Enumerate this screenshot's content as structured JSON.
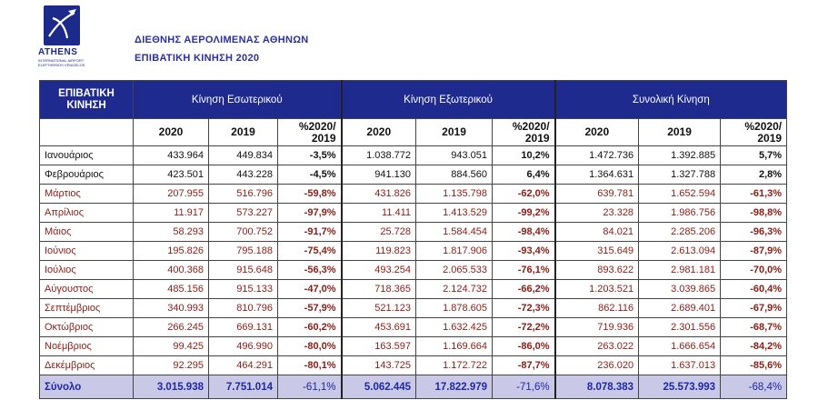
{
  "logo": {
    "name": "ATHENS",
    "sub1": "INTERNATIONAL AIRPORT",
    "sub2": "ELEFTHERIOS VENIZELOS"
  },
  "titles": {
    "line1": "ΔΙΕΘΝΗΣ ΑΕΡΟΛΙΜΕΝΑΣ ΑΘΗΝΩΝ",
    "line2": "ΕΠΙΒΑΤΙΚΗ ΚΙΝΗΣΗ 2020"
  },
  "table": {
    "corner": [
      "ΕΠΙΒΑΤΙΚΗ",
      "ΚΙΝΗΣΗ"
    ],
    "groups": [
      "Κίνηση Εσωτερικού",
      "Κίνηση Εξωτερικού",
      "Συνολική Κίνηση"
    ],
    "sub": {
      "y2020": "2020",
      "y2019": "2019",
      "pct1": "%2020/",
      "pct2": "2019"
    },
    "rows": [
      {
        "m": "Ιανουάριος",
        "c": [
          "433.964",
          "449.834",
          "-3,5%",
          "1.038.772",
          "943.051",
          "10,2%",
          "1.472.736",
          "1.392.885",
          "5,7%"
        ]
      },
      {
        "m": "Φεβρουάριος",
        "c": [
          "423.501",
          "443.228",
          "-4,5%",
          "941.130",
          "884.560",
          "6,4%",
          "1.364.631",
          "1.327.788",
          "2,8%"
        ]
      },
      {
        "m": "Μάρτιος",
        "c": [
          "207.955",
          "516.796",
          "-59,8%",
          "431.826",
          "1.135.798",
          "-62,0%",
          "639.781",
          "1.652.594",
          "-61,3%"
        ]
      },
      {
        "m": "Απρίλιος",
        "c": [
          "11.917",
          "573.227",
          "-97,9%",
          "11.411",
          "1.413.529",
          "-99,2%",
          "23.328",
          "1.986.756",
          "-98,8%"
        ]
      },
      {
        "m": "Μάιος",
        "c": [
          "58.293",
          "700.752",
          "-91,7%",
          "25.728",
          "1.584.454",
          "-98,4%",
          "84.021",
          "2.285.206",
          "-96,3%"
        ]
      },
      {
        "m": "Ιούνιος",
        "c": [
          "195.826",
          "795.188",
          "-75,4%",
          "119.823",
          "1.817.906",
          "-93,4%",
          "315.649",
          "2.613.094",
          "-87,9%"
        ]
      },
      {
        "m": "Ιούλιος",
        "c": [
          "400.368",
          "915.648",
          "-56,3%",
          "493.254",
          "2.065.533",
          "-76,1%",
          "893.622",
          "2.981.181",
          "-70,0%"
        ]
      },
      {
        "m": "Αύγουστος",
        "c": [
          "485.156",
          "915.133",
          "-47,0%",
          "718.365",
          "2.124.732",
          "-66,2%",
          "1.203.521",
          "3.039.865",
          "-60,4%"
        ]
      },
      {
        "m": "Σεπτέμβριος",
        "c": [
          "340.993",
          "810.796",
          "-57,9%",
          "521.123",
          "1.878.605",
          "-72,3%",
          "862.116",
          "2.689.401",
          "-67,9%"
        ]
      },
      {
        "m": "Οκτώβριος",
        "c": [
          "266.245",
          "669.131",
          "-60,2%",
          "453.691",
          "1.632.425",
          "-72,2%",
          "719.936",
          "2.301.556",
          "-68,7%"
        ]
      },
      {
        "m": "Νοέμβριος",
        "c": [
          "99.425",
          "496.990",
          "-80,0%",
          "163.597",
          "1.169.664",
          "-86,0%",
          "263.022",
          "1.666.654",
          "-84,2%"
        ]
      },
      {
        "m": "Δεκέμβριος",
        "c": [
          "92.295",
          "464.291",
          "-80,1%",
          "143.725",
          "1.172.722",
          "-87,7%",
          "236.020",
          "1.637.013",
          "-85,6%"
        ]
      }
    ],
    "total": {
      "m": "Σύνολο",
      "c": [
        "3.015.938",
        "7.751.014",
        "-61,1%",
        "5.062.445",
        "17.822.979",
        "-71,6%",
        "8.078.383",
        "25.573.993",
        "-68,4%"
      ]
    }
  },
  "colors": {
    "header_bg": "#1f2a8f",
    "total_bg": "#c9c8e6",
    "decline_text": "#8a1d14",
    "total_text": "#1e27a8"
  }
}
